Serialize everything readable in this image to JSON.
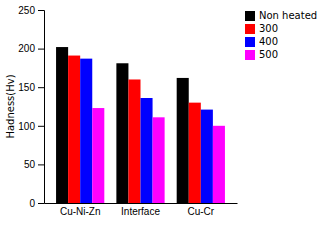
{
  "chart_data": {
    "type": "bar",
    "categories": [
      "Cu-Ni-Zn",
      "Interface",
      "Cu-Cr"
    ],
    "series": [
      {
        "name": "Non heated",
        "color": "#000000",
        "values": [
          202,
          181,
          162
        ]
      },
      {
        "name": "300",
        "color": "#ff0000",
        "values": [
          191,
          160,
          130
        ]
      },
      {
        "name": "400",
        "color": "#0000ff",
        "values": [
          187,
          136,
          121
        ]
      },
      {
        "name": "500",
        "color": "#ff00ff",
        "values": [
          123,
          111,
          100
        ]
      }
    ],
    "ylabel": "Hadness(Hv)",
    "ylim": [
      0,
      250
    ],
    "yticks": [
      0,
      50,
      100,
      150,
      200,
      250
    ],
    "legend": "upper right"
  }
}
